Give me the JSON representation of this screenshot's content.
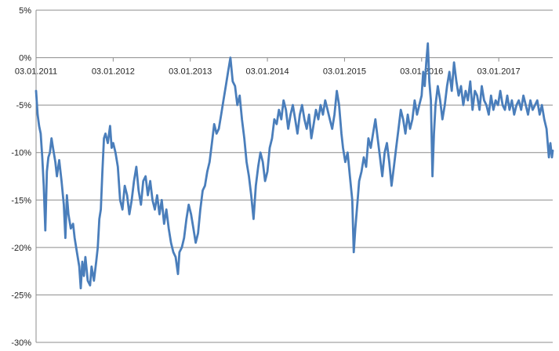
{
  "chart_data": {
    "type": "line",
    "title": "",
    "xlabel": "",
    "ylabel": "",
    "ylim": [
      -30,
      5
    ],
    "ytick_step": 5,
    "yticks": [
      "5%",
      "0%",
      "-5%",
      "-10%",
      "-15%",
      "-20%",
      "-25%",
      "-30%"
    ],
    "xticks": [
      "03.01.2011",
      "03.01.2012",
      "03.01.2013",
      "03.01.2014",
      "03.01.2015",
      "03.01.2016",
      "03.01.2017"
    ],
    "x_start_year": 2011,
    "x_end_year": 2017.7,
    "grid": true,
    "legend": "none",
    "colors": {
      "line": "#4a7ebb",
      "grid": "#8c8c8c",
      "axis": "#8c8c8c"
    },
    "series": [
      {
        "name": "",
        "points": [
          [
            2011.0,
            -3.5
          ],
          [
            2011.02,
            -6.0
          ],
          [
            2011.04,
            -7.2
          ],
          [
            2011.06,
            -8.0
          ],
          [
            2011.08,
            -10.5
          ],
          [
            2011.1,
            -13.5
          ],
          [
            2011.12,
            -18.2
          ],
          [
            2011.14,
            -12.0
          ],
          [
            2011.16,
            -10.5
          ],
          [
            2011.18,
            -10.0
          ],
          [
            2011.2,
            -8.5
          ],
          [
            2011.22,
            -9.5
          ],
          [
            2011.25,
            -11.0
          ],
          [
            2011.27,
            -12.5
          ],
          [
            2011.3,
            -10.8
          ],
          [
            2011.33,
            -13.0
          ],
          [
            2011.36,
            -15.5
          ],
          [
            2011.38,
            -19.0
          ],
          [
            2011.4,
            -14.5
          ],
          [
            2011.42,
            -16.5
          ],
          [
            2011.45,
            -18.0
          ],
          [
            2011.48,
            -17.5
          ],
          [
            2011.5,
            -19.0
          ],
          [
            2011.53,
            -20.5
          ],
          [
            2011.56,
            -22.0
          ],
          [
            2011.58,
            -24.3
          ],
          [
            2011.6,
            -21.5
          ],
          [
            2011.62,
            -23.0
          ],
          [
            2011.64,
            -21.0
          ],
          [
            2011.67,
            -23.5
          ],
          [
            2011.7,
            -24.0
          ],
          [
            2011.72,
            -22.0
          ],
          [
            2011.75,
            -23.5
          ],
          [
            2011.78,
            -21.5
          ],
          [
            2011.8,
            -20.0
          ],
          [
            2011.82,
            -17.0
          ],
          [
            2011.84,
            -16.0
          ],
          [
            2011.86,
            -12.0
          ],
          [
            2011.88,
            -8.5
          ],
          [
            2011.9,
            -8.0
          ],
          [
            2011.93,
            -9.0
          ],
          [
            2011.96,
            -7.2
          ],
          [
            2011.98,
            -9.5
          ],
          [
            2012.0,
            -9.0
          ],
          [
            2012.03,
            -10.0
          ],
          [
            2012.06,
            -11.5
          ],
          [
            2012.09,
            -15.0
          ],
          [
            2012.12,
            -16.0
          ],
          [
            2012.15,
            -13.5
          ],
          [
            2012.18,
            -14.5
          ],
          [
            2012.21,
            -16.5
          ],
          [
            2012.24,
            -15.0
          ],
          [
            2012.27,
            -13.0
          ],
          [
            2012.3,
            -11.5
          ],
          [
            2012.33,
            -14.0
          ],
          [
            2012.36,
            -15.5
          ],
          [
            2012.39,
            -13.0
          ],
          [
            2012.42,
            -12.5
          ],
          [
            2012.45,
            -14.5
          ],
          [
            2012.48,
            -13.0
          ],
          [
            2012.51,
            -15.0
          ],
          [
            2012.54,
            -16.0
          ],
          [
            2012.57,
            -14.5
          ],
          [
            2012.6,
            -16.5
          ],
          [
            2012.63,
            -15.0
          ],
          [
            2012.66,
            -17.5
          ],
          [
            2012.69,
            -16.0
          ],
          [
            2012.72,
            -18.0
          ],
          [
            2012.75,
            -19.5
          ],
          [
            2012.78,
            -20.5
          ],
          [
            2012.81,
            -21.0
          ],
          [
            2012.84,
            -22.8
          ],
          [
            2012.86,
            -20.5
          ],
          [
            2012.89,
            -20.0
          ],
          [
            2012.92,
            -19.0
          ],
          [
            2012.95,
            -17.0
          ],
          [
            2012.98,
            -15.5
          ],
          [
            2013.01,
            -16.5
          ],
          [
            2013.04,
            -18.0
          ],
          [
            2013.07,
            -19.5
          ],
          [
            2013.1,
            -18.5
          ],
          [
            2013.13,
            -16.0
          ],
          [
            2013.16,
            -14.0
          ],
          [
            2013.19,
            -13.5
          ],
          [
            2013.22,
            -12.0
          ],
          [
            2013.25,
            -11.0
          ],
          [
            2013.28,
            -9.0
          ],
          [
            2013.31,
            -7.0
          ],
          [
            2013.34,
            -8.0
          ],
          [
            2013.37,
            -7.5
          ],
          [
            2013.4,
            -6.0
          ],
          [
            2013.43,
            -4.5
          ],
          [
            2013.46,
            -3.0
          ],
          [
            2013.49,
            -1.5
          ],
          [
            2013.52,
            0.0
          ],
          [
            2013.55,
            -2.5
          ],
          [
            2013.58,
            -3.0
          ],
          [
            2013.61,
            -5.0
          ],
          [
            2013.64,
            -4.0
          ],
          [
            2013.67,
            -6.5
          ],
          [
            2013.7,
            -8.5
          ],
          [
            2013.73,
            -11.0
          ],
          [
            2013.76,
            -12.5
          ],
          [
            2013.79,
            -14.5
          ],
          [
            2013.82,
            -17.0
          ],
          [
            2013.85,
            -13.5
          ],
          [
            2013.88,
            -11.5
          ],
          [
            2013.91,
            -10.0
          ],
          [
            2013.94,
            -11.0
          ],
          [
            2013.97,
            -13.0
          ],
          [
            2014.0,
            -12.0
          ],
          [
            2014.03,
            -9.5
          ],
          [
            2014.06,
            -8.5
          ],
          [
            2014.09,
            -6.5
          ],
          [
            2014.12,
            -7.0
          ],
          [
            2014.15,
            -5.5
          ],
          [
            2014.18,
            -6.5
          ],
          [
            2014.21,
            -4.5
          ],
          [
            2014.24,
            -5.5
          ],
          [
            2014.27,
            -7.5
          ],
          [
            2014.3,
            -6.0
          ],
          [
            2014.33,
            -5.0
          ],
          [
            2014.36,
            -6.5
          ],
          [
            2014.39,
            -8.0
          ],
          [
            2014.42,
            -6.0
          ],
          [
            2014.45,
            -5.0
          ],
          [
            2014.48,
            -6.5
          ],
          [
            2014.51,
            -7.5
          ],
          [
            2014.54,
            -6.0
          ],
          [
            2014.57,
            -8.5
          ],
          [
            2014.6,
            -7.0
          ],
          [
            2014.63,
            -5.5
          ],
          [
            2014.66,
            -6.5
          ],
          [
            2014.69,
            -5.0
          ],
          [
            2014.72,
            -6.0
          ],
          [
            2014.75,
            -4.5
          ],
          [
            2014.78,
            -5.5
          ],
          [
            2014.81,
            -6.5
          ],
          [
            2014.84,
            -7.5
          ],
          [
            2014.87,
            -6.0
          ],
          [
            2014.9,
            -3.5
          ],
          [
            2014.93,
            -5.0
          ],
          [
            2014.96,
            -8.0
          ],
          [
            2014.98,
            -9.5
          ],
          [
            2015.01,
            -11.0
          ],
          [
            2015.04,
            -10.0
          ],
          [
            2015.07,
            -12.5
          ],
          [
            2015.1,
            -15.0
          ],
          [
            2015.12,
            -20.5
          ],
          [
            2015.14,
            -18.0
          ],
          [
            2015.16,
            -16.0
          ],
          [
            2015.19,
            -13.0
          ],
          [
            2015.22,
            -12.0
          ],
          [
            2015.25,
            -10.5
          ],
          [
            2015.28,
            -11.5
          ],
          [
            2015.31,
            -8.5
          ],
          [
            2015.34,
            -9.5
          ],
          [
            2015.37,
            -8.0
          ],
          [
            2015.4,
            -6.5
          ],
          [
            2015.43,
            -8.5
          ],
          [
            2015.46,
            -10.5
          ],
          [
            2015.49,
            -12.5
          ],
          [
            2015.52,
            -10.0
          ],
          [
            2015.55,
            -9.0
          ],
          [
            2015.58,
            -11.0
          ],
          [
            2015.61,
            -13.5
          ],
          [
            2015.64,
            -11.5
          ],
          [
            2015.67,
            -9.5
          ],
          [
            2015.7,
            -7.5
          ],
          [
            2015.73,
            -5.5
          ],
          [
            2015.76,
            -6.5
          ],
          [
            2015.79,
            -8.0
          ],
          [
            2015.82,
            -6.0
          ],
          [
            2015.85,
            -7.5
          ],
          [
            2015.88,
            -6.5
          ],
          [
            2015.91,
            -4.5
          ],
          [
            2015.94,
            -6.0
          ],
          [
            2015.97,
            -5.0
          ],
          [
            2016.0,
            -4.0
          ],
          [
            2016.02,
            -1.5
          ],
          [
            2016.04,
            -3.0
          ],
          [
            2016.06,
            -0.5
          ],
          [
            2016.08,
            1.5
          ],
          [
            2016.1,
            -2.5
          ],
          [
            2016.12,
            -4.5
          ],
          [
            2016.14,
            -12.5
          ],
          [
            2016.16,
            -8.0
          ],
          [
            2016.18,
            -5.0
          ],
          [
            2016.21,
            -3.0
          ],
          [
            2016.24,
            -4.5
          ],
          [
            2016.27,
            -6.5
          ],
          [
            2016.3,
            -5.0
          ],
          [
            2016.33,
            -3.0
          ],
          [
            2016.36,
            -1.5
          ],
          [
            2016.39,
            -3.5
          ],
          [
            2016.42,
            -0.5
          ],
          [
            2016.45,
            -2.5
          ],
          [
            2016.48,
            -4.0
          ],
          [
            2016.51,
            -3.0
          ],
          [
            2016.54,
            -5.0
          ],
          [
            2016.57,
            -3.5
          ],
          [
            2016.6,
            -4.5
          ],
          [
            2016.63,
            -2.5
          ],
          [
            2016.66,
            -5.5
          ],
          [
            2016.69,
            -3.5
          ],
          [
            2016.72,
            -4.0
          ],
          [
            2016.75,
            -5.5
          ],
          [
            2016.78,
            -3.0
          ],
          [
            2016.81,
            -4.5
          ],
          [
            2016.84,
            -5.0
          ],
          [
            2016.87,
            -6.0
          ],
          [
            2016.9,
            -4.0
          ],
          [
            2016.93,
            -5.5
          ],
          [
            2016.96,
            -4.5
          ],
          [
            2016.99,
            -5.0
          ],
          [
            2017.02,
            -3.5
          ],
          [
            2017.05,
            -5.0
          ],
          [
            2017.08,
            -5.5
          ],
          [
            2017.11,
            -4.0
          ],
          [
            2017.14,
            -5.5
          ],
          [
            2017.17,
            -4.5
          ],
          [
            2017.2,
            -6.0
          ],
          [
            2017.23,
            -5.0
          ],
          [
            2017.26,
            -4.5
          ],
          [
            2017.29,
            -5.5
          ],
          [
            2017.32,
            -4.0
          ],
          [
            2017.35,
            -5.0
          ],
          [
            2017.38,
            -6.0
          ],
          [
            2017.41,
            -4.5
          ],
          [
            2017.44,
            -5.5
          ],
          [
            2017.47,
            -5.0
          ],
          [
            2017.5,
            -4.5
          ],
          [
            2017.53,
            -6.0
          ],
          [
            2017.56,
            -5.0
          ],
          [
            2017.59,
            -6.5
          ],
          [
            2017.62,
            -7.5
          ],
          [
            2017.65,
            -10.5
          ],
          [
            2017.67,
            -9.0
          ],
          [
            2017.69,
            -10.5
          ],
          [
            2017.7,
            -9.8
          ]
        ]
      }
    ]
  }
}
